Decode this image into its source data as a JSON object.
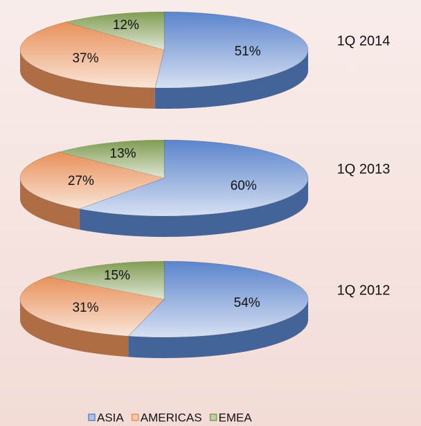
{
  "chart_data": [
    {
      "type": "pie",
      "title": "1Q 2014",
      "categories": [
        "ASIA",
        "AMERICAS",
        "EMEA"
      ],
      "values": [
        51,
        37,
        12
      ],
      "value_labels": [
        "51%",
        "37%",
        "12%"
      ],
      "colors": [
        "#5b84cc",
        "#e8915a",
        "#809c52"
      ]
    },
    {
      "type": "pie",
      "title": "1Q 2013",
      "categories": [
        "ASIA",
        "AMERICAS",
        "EMEA"
      ],
      "values": [
        60,
        27,
        13
      ],
      "value_labels": [
        "60%",
        "27%",
        "13%"
      ],
      "colors": [
        "#5b84cc",
        "#e8915a",
        "#809c52"
      ]
    },
    {
      "type": "pie",
      "title": "1Q 2012",
      "categories": [
        "ASIA",
        "AMERICAS",
        "EMEA"
      ],
      "values": [
        54,
        31,
        15
      ],
      "value_labels": [
        "54%",
        "31%",
        "15%"
      ],
      "colors": [
        "#5b84cc",
        "#e8915a",
        "#809c52"
      ]
    }
  ]
}
